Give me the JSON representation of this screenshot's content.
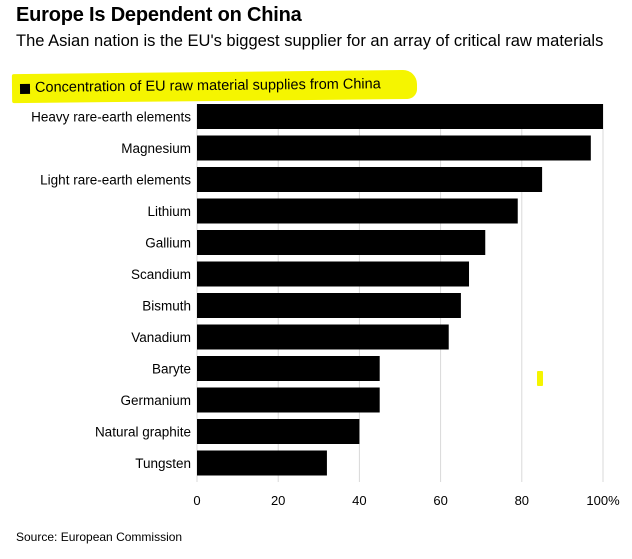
{
  "title": "Europe Is Dependent on China",
  "subtitle": "The Asian nation is the EU's biggest supplier for an array of critical raw materials",
  "legend": {
    "label": "Concentration of EU raw material supplies from China"
  },
  "source": "Source: European Commission",
  "colors": {
    "bar": "#000000",
    "highlight": "#f5f500",
    "grid": "#d9d9d9"
  },
  "chart_data": {
    "type": "bar",
    "orientation": "horizontal",
    "categories": [
      "Heavy rare-earth elements",
      "Magnesium",
      "Light rare-earth elements",
      "Lithium",
      "Gallium",
      "Scandium",
      "Bismuth",
      "Vanadium",
      "Baryte",
      "Germanium",
      "Natural graphite",
      "Tungsten"
    ],
    "series": [
      {
        "name": "Concentration of EU raw material supplies from China",
        "values": [
          100,
          97,
          85,
          79,
          71,
          67,
          65,
          62,
          45,
          45,
          40,
          32
        ]
      }
    ],
    "xlim": [
      0,
      100
    ],
    "xticks": [
      "0",
      "20",
      "40",
      "60",
      "80",
      "100%"
    ],
    "xlabel": "",
    "ylabel": "",
    "grid": "vertical"
  }
}
